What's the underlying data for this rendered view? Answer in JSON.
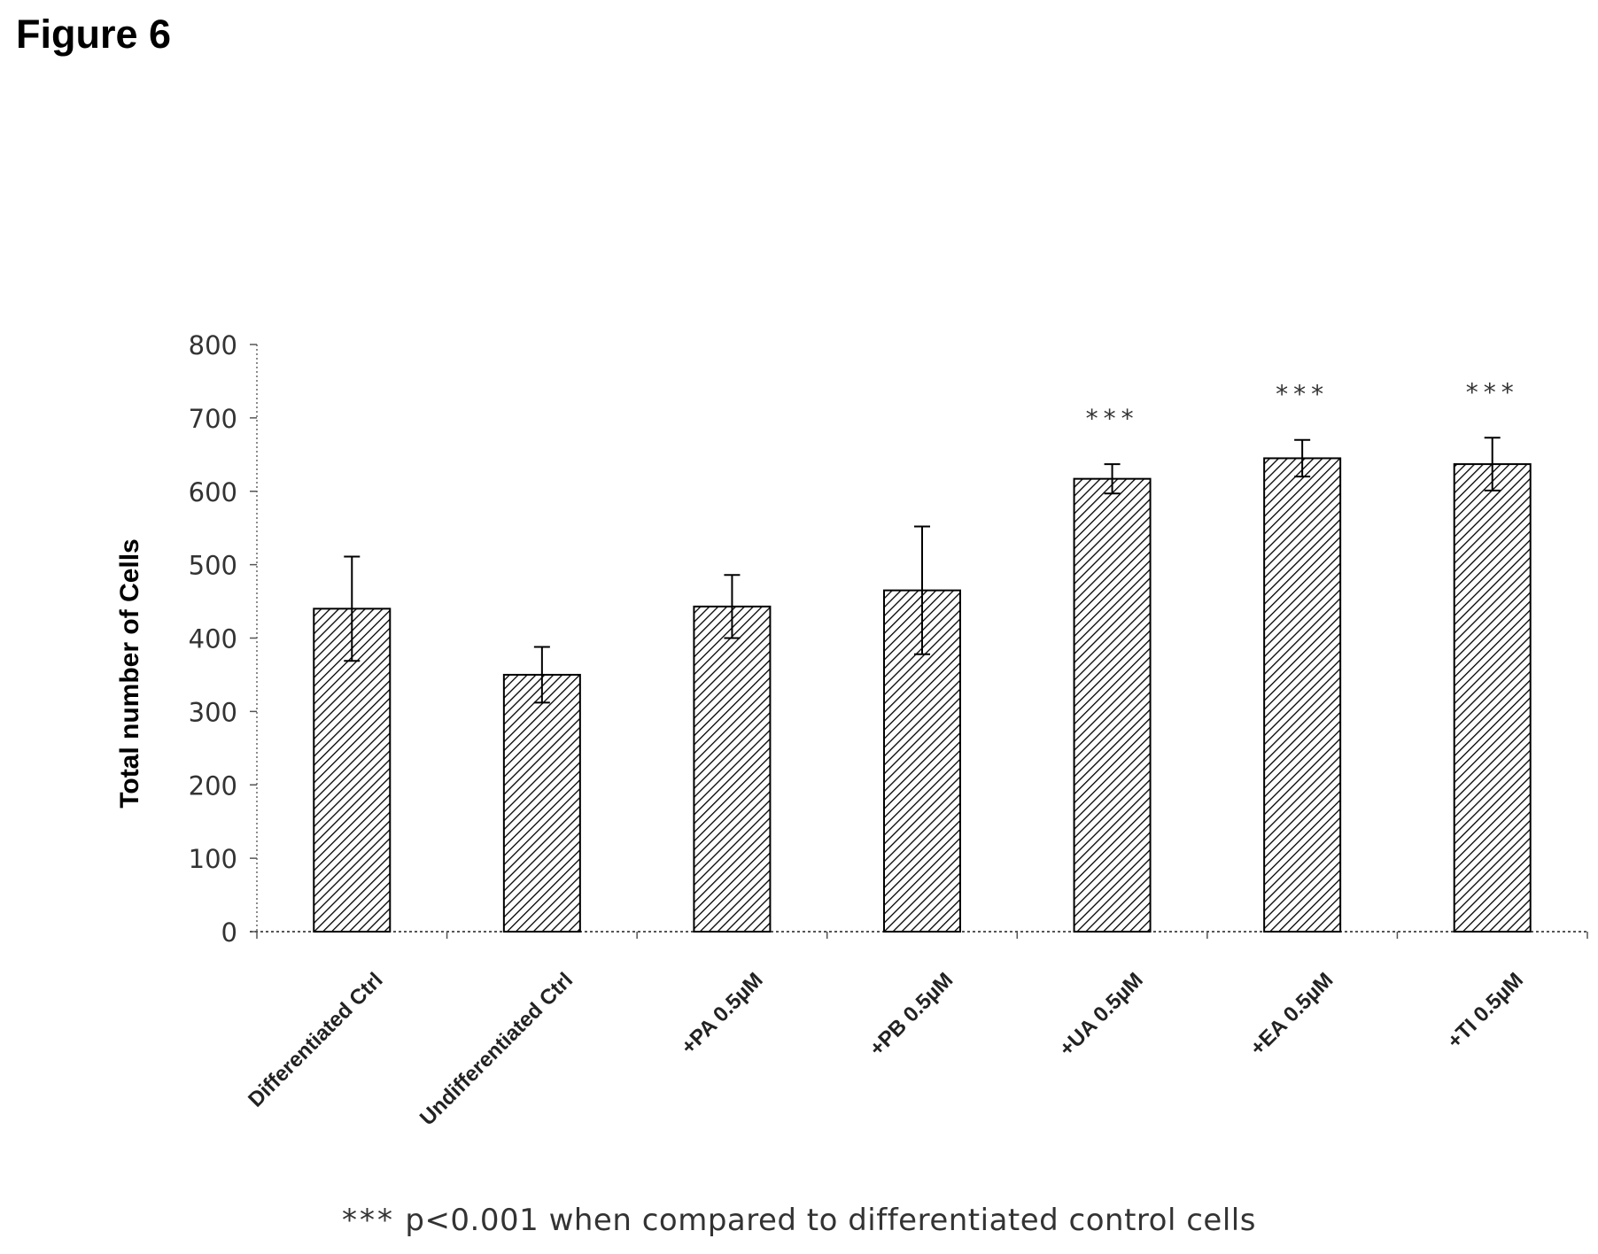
{
  "figure_title": "Figure 6",
  "footnote": {
    "marker": "***",
    "text": "p<0.001 when compared to differentiated control cells"
  },
  "chart_data": {
    "type": "bar",
    "title": "",
    "xlabel": "",
    "ylabel": "Total number of Cells",
    "ylim": [
      0,
      800
    ],
    "yticks": [
      0,
      100,
      200,
      300,
      400,
      500,
      600,
      700,
      800
    ],
    "grid": false,
    "legend": "none",
    "fill": "diagonal hatch",
    "categories": [
      "Differentiated Ctrl",
      "Undifferentiated Ctrl",
      "+PA 0.5µM",
      "+PB 0.5µM",
      "+UA 0.5µM",
      "+EA 0.5µM",
      "+TI 0.5µM"
    ],
    "values": [
      440,
      350,
      443,
      465,
      617,
      645,
      637
    ],
    "errors": [
      71,
      38,
      43,
      87,
      20,
      25,
      36
    ],
    "significance": [
      "",
      "",
      "",
      "",
      "***",
      "***",
      "***"
    ]
  }
}
